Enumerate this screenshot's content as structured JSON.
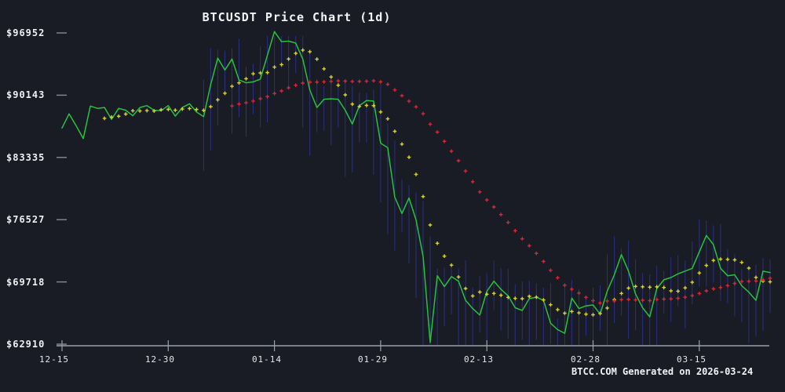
{
  "title": "BTCUSDT Price Chart (1d)",
  "watermark": "BTCC.COM Generated on 2026-03-24",
  "colors": {
    "background": "#191c25",
    "price_line": "#28c13e",
    "ma7_dots": "#d6d22e",
    "ma25_dots": "#d42838",
    "range_bars": "#2b2f80",
    "axis": "#9aa0a8",
    "tick": "#858b94",
    "text": "#f2f3f5"
  },
  "y_axis": {
    "labels": [
      "$96952",
      "$90143",
      "$83335",
      "$76527",
      "$69718",
      "$62910"
    ],
    "values": [
      96952,
      90143,
      83335,
      76527,
      69718,
      62910
    ]
  },
  "x_axis": {
    "labels": [
      "12-15",
      "12-30",
      "01-14",
      "01-29",
      "02-13",
      "02-28",
      "03-15"
    ],
    "tick_days": [
      0,
      15,
      30,
      45,
      60,
      75,
      90
    ]
  },
  "chart_data": {
    "type": "line",
    "title": "BTCUSDT Price Chart (1d)",
    "symbol": "BTCUSDT",
    "interval": "1d",
    "x_start_label": "12-15",
    "x_step": "1 day",
    "points": 101,
    "ylim": [
      62910,
      96952
    ],
    "grid": false,
    "legend": "none",
    "series": [
      {
        "name": "price",
        "style": "line",
        "color": "#28c13e",
        "start_day": 0,
        "values": [
          86550,
          88100,
          86800,
          85400,
          88950,
          88700,
          88800,
          87500,
          88700,
          88500,
          87900,
          88800,
          89000,
          88500,
          88450,
          89000,
          87850,
          88800,
          89200,
          88300,
          87800,
          91300,
          94200,
          92900,
          94100,
          91800,
          91500,
          91600,
          91900,
          94500,
          97100,
          96000,
          96050,
          95850,
          94100,
          90700,
          88800,
          89700,
          89750,
          89700,
          88500,
          87000,
          89000,
          89550,
          89500,
          84900,
          84400,
          79000,
          77200,
          78900,
          76500,
          72500,
          63100,
          70400,
          69200,
          70300,
          69800,
          67700,
          66800,
          66100,
          68700,
          69800,
          68900,
          68200,
          66900,
          66600,
          67900,
          68050,
          67700,
          65200,
          64500,
          64100,
          67950,
          66800,
          67100,
          67200,
          66200,
          68700,
          70500,
          72700,
          70900,
          68400,
          66900,
          65900,
          69000,
          69950,
          70200,
          70600,
          70900,
          71200,
          73000,
          74800,
          73800,
          71200,
          70400,
          70500,
          69300,
          68600,
          67700,
          70900,
          70750
        ]
      },
      {
        "name": "MA7",
        "style": "plus-dots",
        "color": "#d6d22e",
        "derived": "sma",
        "window": 7,
        "source": "price"
      },
      {
        "name": "MA25",
        "style": "plus-dots",
        "color": "#d42838",
        "derived": "sma",
        "window": 25,
        "source": "price"
      }
    ],
    "range_bars": {
      "style": "vertical high-low lines behind price",
      "color": "#2b2f80",
      "start_day": 20,
      "end_day": 100,
      "note": "daily high/low wick around local price range"
    }
  }
}
